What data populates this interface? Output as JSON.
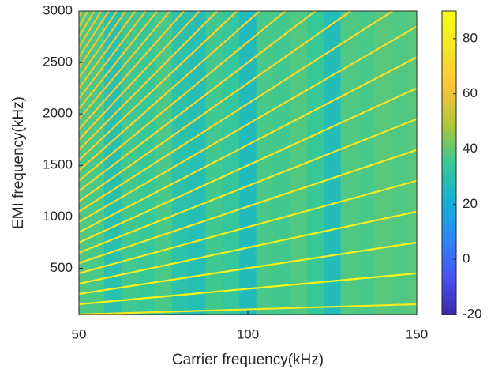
{
  "chart_data": {
    "type": "heatmap",
    "colormap": "parula",
    "xlabel": "Carrier frequency(kHz)",
    "ylabel": "EMI frequency(kHz)",
    "xlim": [
      50,
      150
    ],
    "xticks": [
      50,
      100,
      150
    ],
    "ylim": [
      50,
      3000
    ],
    "yticks": [
      500,
      1000,
      1500,
      2000,
      2500,
      3000
    ],
    "clim": [
      -20,
      90
    ],
    "cticks": [
      -20,
      0,
      20,
      40,
      60,
      80
    ],
    "background": {
      "x": [
        50,
        55,
        60,
        65,
        70,
        75,
        80,
        85,
        90,
        95,
        100,
        105,
        110,
        115,
        120,
        125,
        130,
        135,
        140,
        145,
        150
      ],
      "values": [
        38,
        37,
        30,
        36,
        35,
        37,
        31,
        29,
        36,
        34,
        27,
        37,
        36,
        38,
        35,
        28,
        38,
        37,
        39,
        38,
        39
      ]
    },
    "lines": [
      {
        "x": [
          50,
          150
        ],
        "y": [
          50,
          150
        ],
        "z": 80
      },
      {
        "x": [
          50,
          150
        ],
        "y": [
          150,
          450
        ],
        "z": 86
      },
      {
        "x": [
          50,
          150
        ],
        "y": [
          250,
          750
        ],
        "z": 84
      },
      {
        "x": [
          50,
          150
        ],
        "y": [
          350,
          1050
        ],
        "z": 82
      },
      {
        "x": [
          50,
          150
        ],
        "y": [
          450,
          1350
        ],
        "z": 80
      },
      {
        "x": [
          50,
          150
        ],
        "y": [
          550,
          1650
        ],
        "z": 78
      },
      {
        "x": [
          50,
          150
        ],
        "y": [
          650,
          1950
        ],
        "z": 76
      },
      {
        "x": [
          50,
          150
        ],
        "y": [
          750,
          2250
        ],
        "z": 75
      },
      {
        "x": [
          50,
          150
        ],
        "y": [
          850,
          2550
        ],
        "z": 74
      },
      {
        "x": [
          50,
          150
        ],
        "y": [
          950,
          2850
        ],
        "z": 72
      },
      {
        "x": [
          50,
          150
        ],
        "y": [
          1050,
          3150
        ],
        "z": 71
      },
      {
        "x": [
          50,
          150
        ],
        "y": [
          1150,
          3450
        ],
        "z": 70
      },
      {
        "x": [
          50,
          150
        ],
        "y": [
          1250,
          3750
        ],
        "z": 69
      },
      {
        "x": [
          50,
          150
        ],
        "y": [
          1350,
          4050
        ],
        "z": 68
      },
      {
        "x": [
          50,
          150
        ],
        "y": [
          1450,
          4350
        ],
        "z": 67
      },
      {
        "x": [
          50,
          150
        ],
        "y": [
          1550,
          4650
        ],
        "z": 66
      },
      {
        "x": [
          50,
          150
        ],
        "y": [
          1650,
          4950
        ],
        "z": 65
      },
      {
        "x": [
          50,
          150
        ],
        "y": [
          1750,
          5250
        ],
        "z": 64
      },
      {
        "x": [
          50,
          150
        ],
        "y": [
          1850,
          5550
        ],
        "z": 63
      },
      {
        "x": [
          50,
          150
        ],
        "y": [
          1950,
          5850
        ],
        "z": 62
      },
      {
        "x": [
          50,
          150
        ],
        "y": [
          2050,
          6150
        ],
        "z": 62
      },
      {
        "x": [
          50,
          150
        ],
        "y": [
          2150,
          6450
        ],
        "z": 61
      },
      {
        "x": [
          50,
          150
        ],
        "y": [
          2250,
          6750
        ],
        "z": 61
      },
      {
        "x": [
          50,
          150
        ],
        "y": [
          2350,
          7050
        ],
        "z": 60
      },
      {
        "x": [
          50,
          150
        ],
        "y": [
          2450,
          7350
        ],
        "z": 60
      },
      {
        "x": [
          50,
          150
        ],
        "y": [
          2550,
          7650
        ],
        "z": 60
      },
      {
        "x": [
          50,
          150
        ],
        "y": [
          2650,
          7950
        ],
        "z": 60
      },
      {
        "x": [
          50,
          150
        ],
        "y": [
          2750,
          8250
        ],
        "z": 60
      },
      {
        "x": [
          50,
          150
        ],
        "y": [
          2850,
          8550
        ],
        "z": 60
      },
      {
        "x": [
          50,
          150
        ],
        "y": [
          2950,
          8850
        ],
        "z": 60
      }
    ]
  }
}
